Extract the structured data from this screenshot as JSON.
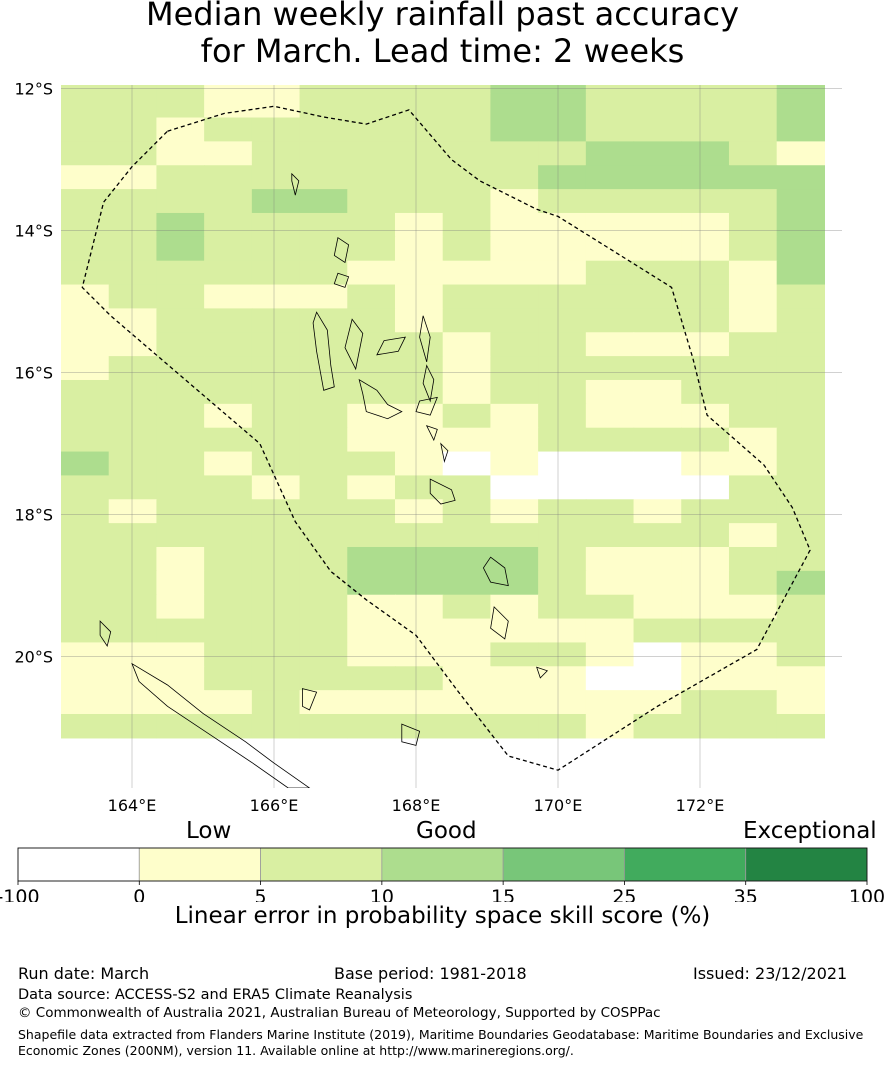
{
  "title_lines": [
    "Median weekly rainfall past accuracy",
    "for March. Lead time: 2 weeks"
  ],
  "map": {
    "lon_ticks": [
      "164°E",
      "166°E",
      "168°E",
      "170°E",
      "172°E"
    ],
    "lat_ticks": [
      "12°S",
      "14°S",
      "16°S",
      "18°S",
      "20°S"
    ],
    "extent": {
      "lon_min": 163.0,
      "lon_max": 174.0,
      "lat_max": -11.95,
      "lat_min": -21.85
    },
    "grid_lon": [
      164,
      166,
      168,
      170,
      172
    ],
    "grid_lat": [
      -12,
      -14,
      -16,
      -18,
      -20
    ],
    "cell_size_deg": 0.84,
    "grid_origin": {
      "lon": 163.0,
      "lat": -11.4
    },
    "category_colors": [
      "#ffffff",
      "#fefecb",
      "#d9efa2",
      "#addd8e",
      "#78c679",
      "#41ab5d",
      "#238443"
    ],
    "cells_legend": "0:<0 white, 1:0-5, 2:5-10, 3:10-15",
    "cells": [
      "2222333222223333",
      "2221122223322223",
      "2221122223322223",
      "2212222223322223",
      "2211222222233321",
      "1122222222333333",
      "2222332221222223",
      "2232222121111123",
      "2232222121111123",
      "2222221111122213",
      "1221112122222212",
      "1122222122222212",
      "1122222212211122",
      "1222222212222222",
      "2222222212211222",
      "2221221121211122",
      "2222221111222212",
      "3221222101000112",
      "2222121220000022",
      "2122222121221222",
      "2222222222222212",
      "2212223333211122",
      "2212223333211123",
      "2212221121221112",
      "2222221111112222",
      "1112221112210112",
      "1112222211100111",
      "1111211111111221",
      "2222222222212222"
    ],
    "eez_outline": [
      [
        164.5,
        -12.6
      ],
      [
        165.3,
        -12.35
      ],
      [
        166.0,
        -12.25
      ],
      [
        166.7,
        -12.4
      ],
      [
        167.3,
        -12.5
      ],
      [
        167.9,
        -12.3
      ],
      [
        168.5,
        -13.0
      ],
      [
        168.9,
        -13.3
      ],
      [
        169.7,
        -13.7
      ],
      [
        170.0,
        -13.8
      ],
      [
        170.8,
        -14.3
      ],
      [
        171.6,
        -14.8
      ],
      [
        171.9,
        -15.8
      ],
      [
        172.1,
        -16.6
      ],
      [
        172.9,
        -17.3
      ],
      [
        173.3,
        -17.9
      ],
      [
        173.55,
        -18.5
      ],
      [
        172.8,
        -19.9
      ],
      [
        171.4,
        -20.7
      ],
      [
        170.0,
        -21.6
      ],
      [
        169.3,
        -21.4
      ],
      [
        168.6,
        -20.5
      ],
      [
        168.0,
        -19.7
      ],
      [
        167.3,
        -19.2
      ],
      [
        166.8,
        -18.8
      ],
      [
        166.3,
        -18.1
      ],
      [
        165.8,
        -17.0
      ],
      [
        165.1,
        -16.4
      ],
      [
        164.4,
        -15.8
      ],
      [
        163.7,
        -15.2
      ],
      [
        163.3,
        -14.8
      ],
      [
        163.6,
        -13.6
      ],
      [
        164.0,
        -13.1
      ],
      [
        164.5,
        -12.6
      ]
    ],
    "islands": [
      [
        [
          166.25,
          -13.2
        ],
        [
          166.35,
          -13.3
        ],
        [
          166.3,
          -13.5
        ],
        [
          166.25,
          -13.3
        ]
      ],
      [
        [
          166.9,
          -14.1
        ],
        [
          167.05,
          -14.2
        ],
        [
          167.0,
          -14.45
        ],
        [
          166.85,
          -14.35
        ]
      ],
      [
        [
          166.9,
          -14.6
        ],
        [
          167.05,
          -14.65
        ],
        [
          167.0,
          -14.8
        ],
        [
          166.85,
          -14.75
        ]
      ],
      [
        [
          166.6,
          -15.15
        ],
        [
          166.75,
          -15.4
        ],
        [
          166.8,
          -15.9
        ],
        [
          166.85,
          -16.2
        ],
        [
          166.7,
          -16.25
        ],
        [
          166.6,
          -15.7
        ],
        [
          166.55,
          -15.3
        ]
      ],
      [
        [
          167.1,
          -15.25
        ],
        [
          167.25,
          -15.45
        ],
        [
          167.15,
          -15.95
        ],
        [
          167.0,
          -15.65
        ]
      ],
      [
        [
          167.55,
          -15.55
        ],
        [
          167.85,
          -15.5
        ],
        [
          167.75,
          -15.7
        ],
        [
          167.45,
          -15.75
        ]
      ],
      [
        [
          168.1,
          -15.2
        ],
        [
          168.2,
          -15.5
        ],
        [
          168.15,
          -15.85
        ],
        [
          168.05,
          -15.5
        ]
      ],
      [
        [
          168.15,
          -15.9
        ],
        [
          168.25,
          -16.1
        ],
        [
          168.2,
          -16.4
        ],
        [
          168.1,
          -16.15
        ]
      ],
      [
        [
          167.2,
          -16.1
        ],
        [
          167.45,
          -16.25
        ],
        [
          167.6,
          -16.45
        ],
        [
          167.8,
          -16.55
        ],
        [
          167.6,
          -16.65
        ],
        [
          167.3,
          -16.55
        ],
        [
          167.25,
          -16.3
        ]
      ],
      [
        [
          168.05,
          -16.4
        ],
        [
          168.3,
          -16.35
        ],
        [
          168.2,
          -16.6
        ],
        [
          168.0,
          -16.55
        ]
      ],
      [
        [
          168.15,
          -16.75
        ],
        [
          168.3,
          -16.8
        ],
        [
          168.25,
          -16.95
        ]
      ],
      [
        [
          168.35,
          -17.0
        ],
        [
          168.45,
          -17.1
        ],
        [
          168.4,
          -17.25
        ]
      ],
      [
        [
          168.2,
          -17.5
        ],
        [
          168.5,
          -17.65
        ],
        [
          168.55,
          -17.8
        ],
        [
          168.35,
          -17.85
        ],
        [
          168.2,
          -17.7
        ]
      ],
      [
        [
          169.05,
          -18.6
        ],
        [
          169.25,
          -18.75
        ],
        [
          169.3,
          -19.0
        ],
        [
          169.05,
          -18.95
        ],
        [
          168.95,
          -18.75
        ]
      ],
      [
        [
          169.1,
          -19.3
        ],
        [
          169.3,
          -19.5
        ],
        [
          169.25,
          -19.75
        ],
        [
          169.05,
          -19.6
        ]
      ],
      [
        [
          169.7,
          -20.15
        ],
        [
          169.85,
          -20.2
        ],
        [
          169.75,
          -20.3
        ]
      ],
      [
        [
          167.8,
          -20.95
        ],
        [
          168.05,
          -21.05
        ],
        [
          168.0,
          -21.25
        ],
        [
          167.8,
          -21.2
        ]
      ],
      [
        [
          166.4,
          -20.45
        ],
        [
          166.6,
          -20.5
        ],
        [
          166.5,
          -20.75
        ],
        [
          166.4,
          -20.7
        ]
      ],
      [
        [
          164.0,
          -20.1
        ],
        [
          164.5,
          -20.4
        ],
        [
          165.0,
          -20.8
        ],
        [
          165.6,
          -21.2
        ],
        [
          166.0,
          -21.5
        ],
        [
          166.5,
          -21.85
        ],
        [
          166.2,
          -21.85
        ],
        [
          165.7,
          -21.5
        ],
        [
          165.1,
          -21.1
        ],
        [
          164.5,
          -20.7
        ],
        [
          164.1,
          -20.35
        ]
      ],
      [
        [
          163.55,
          -19.5
        ],
        [
          163.7,
          -19.65
        ],
        [
          163.65,
          -19.85
        ],
        [
          163.55,
          -19.7
        ]
      ]
    ]
  },
  "colorbar": {
    "categories": [
      "Low",
      "Good",
      "Exceptional"
    ],
    "ticks": [
      "-100",
      "0",
      "5",
      "10",
      "15",
      "25",
      "35",
      "100"
    ],
    "colors": [
      "#ffffff",
      "#fefecb",
      "#d9efa2",
      "#addd8e",
      "#78c679",
      "#41ab5d",
      "#238443"
    ],
    "label": "Linear error in probability space skill score (%)"
  },
  "footer": {
    "run_date": "Run date: March",
    "base_period": "Base period: 1981-2018",
    "issued": "Issued: 23/12/2021",
    "data_source": "Data source: ACCESS-S2 and ERA5 Climate Reanalysis",
    "copyright": "© Commonwealth of Australia 2021, Australian Bureau of Meteorology, Supported by COSPPac",
    "shapefile_line1": "Shapefile data extracted from Flanders Marine Institute (2019), Maritime Boundaries Geodatabase: Maritime Boundaries and Exclusive",
    "shapefile_line2": "Economic Zones (200NM), version 11. Available online at http://www.marineregions.org/."
  }
}
